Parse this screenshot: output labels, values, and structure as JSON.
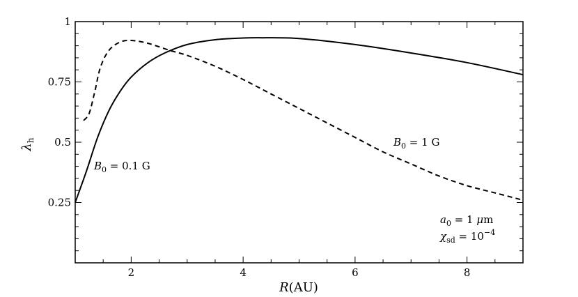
{
  "chart_data": {
    "type": "line",
    "xlabel": "R(AU)",
    "ylabel": "λh",
    "xlim": [
      1,
      9
    ],
    "ylim": [
      0,
      1
    ],
    "x_ticks": [
      2,
      4,
      6,
      8
    ],
    "y_ticks": [
      0.25,
      0.5,
      0.75,
      1
    ],
    "x_tick_labels": [
      "2",
      "4",
      "6",
      "8"
    ],
    "y_tick_labels": [
      "0.25",
      "0.5",
      "0.75",
      "1"
    ],
    "grid": false,
    "series": [
      {
        "name": "B0 = 0.1 G",
        "style": "solid",
        "color": "#000000",
        "x": [
          1.0,
          1.2,
          1.4,
          1.6,
          1.8,
          2.0,
          2.3,
          2.6,
          3.0,
          3.5,
          4.0,
          4.3,
          5.0,
          6.0,
          7.0,
          8.0,
          9.0
        ],
        "y": [
          0.25,
          0.38,
          0.52,
          0.63,
          0.71,
          0.77,
          0.83,
          0.87,
          0.905,
          0.925,
          0.932,
          0.933,
          0.93,
          0.905,
          0.87,
          0.83,
          0.78
        ]
      },
      {
        "name": "B0 = 1 G",
        "style": "dashed",
        "color": "#000000",
        "x": [
          1.15,
          1.25,
          1.35,
          1.45,
          1.6,
          1.8,
          2.0,
          2.3,
          2.7,
          3.0,
          3.5,
          4.0,
          4.5,
          5.0,
          5.5,
          6.0,
          6.5,
          7.0,
          7.5,
          8.0,
          8.5,
          9.0
        ],
        "y": [
          0.59,
          0.62,
          0.71,
          0.81,
          0.88,
          0.915,
          0.922,
          0.91,
          0.88,
          0.86,
          0.815,
          0.76,
          0.7,
          0.64,
          0.58,
          0.52,
          0.46,
          0.41,
          0.36,
          0.32,
          0.29,
          0.26
        ]
      }
    ],
    "annotations": {
      "curve1_label": "B0 = 0.1 G",
      "curve2_label": "B0 = 1 G",
      "param_a0": "a0 = 1 μm",
      "param_chi": "χsd = 10−4"
    }
  }
}
